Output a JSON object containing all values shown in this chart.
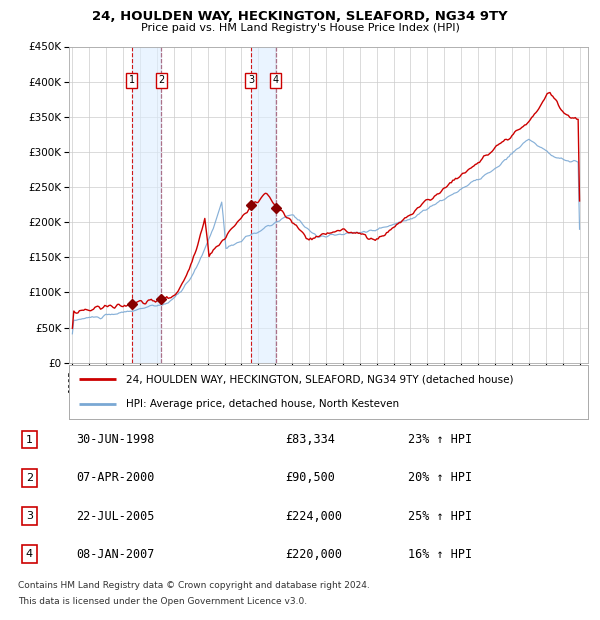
{
  "title": "24, HOULDEN WAY, HECKINGTON, SLEAFORD, NG34 9TY",
  "subtitle": "Price paid vs. HM Land Registry's House Price Index (HPI)",
  "legend_line1": "24, HOULDEN WAY, HECKINGTON, SLEAFORD, NG34 9TY (detached house)",
  "legend_line2": "HPI: Average price, detached house, North Kesteven",
  "footer1": "Contains HM Land Registry data © Crown copyright and database right 2024.",
  "footer2": "This data is licensed under the Open Government Licence v3.0.",
  "transactions": [
    {
      "num": 1,
      "date": "30-JUN-1998",
      "price": 83334,
      "hpi_pct": "23% ↑ HPI",
      "year": 1998.5
    },
    {
      "num": 2,
      "date": "07-APR-2000",
      "price": 90500,
      "hpi_pct": "20% ↑ HPI",
      "year": 2000.27
    },
    {
      "num": 3,
      "date": "22-JUL-2005",
      "price": 224000,
      "hpi_pct": "25% ↑ HPI",
      "year": 2005.56
    },
    {
      "num": 4,
      "date": "08-JAN-2007",
      "price": 220000,
      "hpi_pct": "16% ↑ HPI",
      "year": 2007.03
    }
  ],
  "hpi_color": "#7aa8d4",
  "price_color": "#cc0000",
  "marker_color": "#880000",
  "grid_color": "#cccccc",
  "vline_shade_color": "#ddeeff",
  "vline_red": "#cc0000",
  "vline_blue": "#9999bb",
  "ylim": [
    0,
    450000
  ],
  "yticks": [
    0,
    50000,
    100000,
    150000,
    200000,
    250000,
    300000,
    350000,
    400000,
    450000
  ],
  "xlim_start": 1994.8,
  "xlim_end": 2025.5,
  "background_color": "#ffffff",
  "fig_width": 6.0,
  "fig_height": 6.2,
  "dpi": 100
}
